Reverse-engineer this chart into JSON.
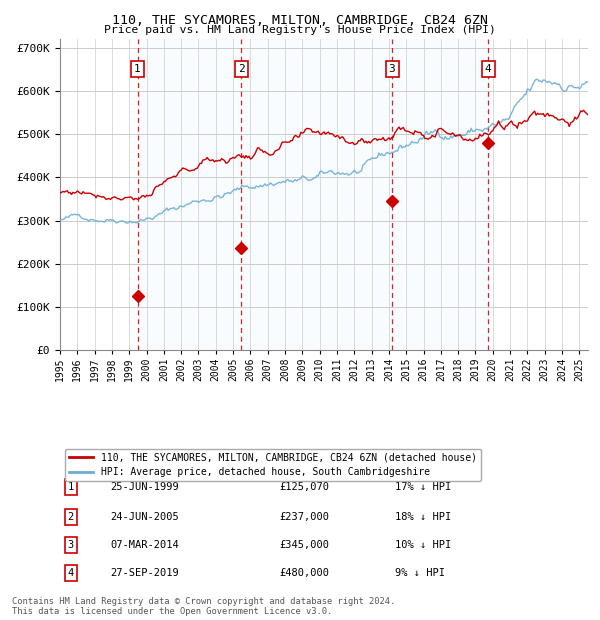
{
  "title1": "110, THE SYCAMORES, MILTON, CAMBRIDGE, CB24 6ZN",
  "title2": "Price paid vs. HM Land Registry's House Price Index (HPI)",
  "ylim": [
    0,
    720000
  ],
  "xlim_start": 1995.0,
  "xlim_end": 2025.5,
  "yticks": [
    0,
    100000,
    200000,
    300000,
    400000,
    500000,
    600000,
    700000
  ],
  "ytick_labels": [
    "£0",
    "£100K",
    "£200K",
    "£300K",
    "£400K",
    "£500K",
    "£600K",
    "£700K"
  ],
  "xtick_labels": [
    "1995",
    "1996",
    "1997",
    "1998",
    "1999",
    "2000",
    "2001",
    "2002",
    "2003",
    "2004",
    "2005",
    "2006",
    "2007",
    "2008",
    "2009",
    "2010",
    "2011",
    "2012",
    "2013",
    "2014",
    "2015",
    "2016",
    "2017",
    "2018",
    "2019",
    "2020",
    "2021",
    "2022",
    "2023",
    "2024",
    "2025"
  ],
  "hpi_color": "#6baed6",
  "price_color": "#cc0000",
  "vline_color": "#cc0000",
  "shade_color": "#ddeeff",
  "grid_color": "#cccccc",
  "bg_color": "#ffffff",
  "sales": [
    {
      "num": 1,
      "date_str": "25-JUN-1999",
      "price": 125070,
      "year": 1999.48,
      "hpi_pct": "17% ↓ HPI"
    },
    {
      "num": 2,
      "date_str": "24-JUN-2005",
      "price": 237000,
      "year": 2005.48,
      "hpi_pct": "18% ↓ HPI"
    },
    {
      "num": 3,
      "date_str": "07-MAR-2014",
      "price": 345000,
      "year": 2014.18,
      "hpi_pct": "10% ↓ HPI"
    },
    {
      "num": 4,
      "date_str": "27-SEP-2019",
      "price": 480000,
      "year": 2019.74,
      "hpi_pct": "9% ↓ HPI"
    }
  ],
  "legend_entries": [
    "110, THE SYCAMORES, MILTON, CAMBRIDGE, CB24 6ZN (detached house)",
    "HPI: Average price, detached house, South Cambridgeshire"
  ],
  "footer1": "Contains HM Land Registry data © Crown copyright and database right 2024.",
  "footer2": "This data is licensed under the Open Government Licence v3.0."
}
